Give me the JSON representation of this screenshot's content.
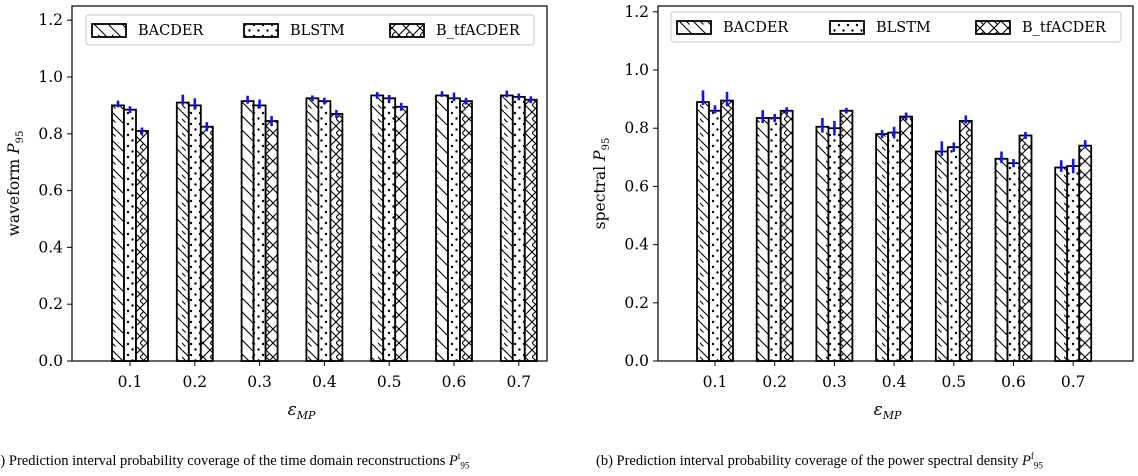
{
  "figure": {
    "captions": [
      {
        "prefix": "a) Prediction interval probability coverage of the time domain reconstructions ",
        "sym": "P",
        "sup": "t",
        "sub": "95"
      },
      {
        "prefix": "(b) Prediction interval probability coverage of the power spectral density ",
        "sym": "P",
        "sup": "f",
        "sub": "95"
      }
    ]
  },
  "chart_data": [
    {
      "type": "bar",
      "panel": "a",
      "categories": [
        "0.1",
        "0.2",
        "0.3",
        "0.4",
        "0.5",
        "0.6",
        "0.7"
      ],
      "xlabel_sym": "ε",
      "xlabel_sub": "MP",
      "ylabel_text": "waveform",
      "ylabel_sym": "P",
      "ylabel_sub": "95",
      "ylim": [
        0,
        1.25
      ],
      "yticks": [
        "0.0",
        "0.2",
        "0.4",
        "0.6",
        "0.8",
        "1.0",
        "1.2"
      ],
      "legend_position": "top",
      "series": [
        {
          "name": "BACDER",
          "pattern": "backslash",
          "values": [
            0.9,
            0.91,
            0.915,
            0.925,
            0.935,
            0.935,
            0.935
          ],
          "err_values": [
            0.905,
            0.92,
            0.92,
            0.925,
            0.935,
            0.94,
            0.94
          ],
          "err": [
            0.012,
            0.018,
            0.014,
            0.01,
            0.012,
            0.01,
            0.012
          ]
        },
        {
          "name": "BLSTM",
          "pattern": "dots",
          "values": [
            0.885,
            0.9,
            0.9,
            0.915,
            0.925,
            0.925,
            0.93
          ],
          "err_values": [
            0.885,
            0.905,
            0.905,
            0.915,
            0.925,
            0.93,
            0.93
          ],
          "err": [
            0.012,
            0.02,
            0.016,
            0.012,
            0.012,
            0.015,
            0.012
          ]
        },
        {
          "name": "B_tfACDER",
          "pattern": "cross",
          "values": [
            0.81,
            0.825,
            0.845,
            0.87,
            0.895,
            0.915,
            0.92
          ],
          "err_values": [
            0.81,
            0.825,
            0.845,
            0.87,
            0.895,
            0.915,
            0.92
          ],
          "err": [
            0.012,
            0.016,
            0.018,
            0.014,
            0.014,
            0.012,
            0.012
          ]
        }
      ]
    },
    {
      "type": "bar",
      "panel": "b",
      "categories": [
        "0.1",
        "0.2",
        "0.3",
        "0.4",
        "0.5",
        "0.6",
        "0.7"
      ],
      "xlabel_sym": "ε",
      "xlabel_sub": "MP",
      "ylabel_text": "spectral",
      "ylabel_sym": "P",
      "ylabel_sub": "95",
      "ylim": [
        0,
        1.22
      ],
      "yticks": [
        "0.0",
        "0.2",
        "0.4",
        "0.6",
        "0.8",
        "1.0",
        "1.2"
      ],
      "legend_position": "top",
      "series": [
        {
          "name": "BACDER",
          "pattern": "backslash",
          "values": [
            0.89,
            0.835,
            0.805,
            0.78,
            0.72,
            0.695,
            0.665
          ],
          "err_values": [
            0.905,
            0.84,
            0.81,
            0.78,
            0.73,
            0.7,
            0.67
          ],
          "err": [
            0.025,
            0.022,
            0.025,
            0.014,
            0.025,
            0.02,
            0.02
          ]
        },
        {
          "name": "BLSTM",
          "pattern": "dots",
          "values": [
            0.86,
            0.835,
            0.8,
            0.785,
            0.735,
            0.68,
            0.67
          ],
          "err_values": [
            0.865,
            0.835,
            0.8,
            0.785,
            0.735,
            0.68,
            0.67
          ],
          "err": [
            0.014,
            0.014,
            0.025,
            0.02,
            0.016,
            0.014,
            0.025
          ]
        },
        {
          "name": "B_tfACDER",
          "pattern": "cross",
          "values": [
            0.895,
            0.86,
            0.86,
            0.84,
            0.825,
            0.775,
            0.74
          ],
          "err_values": [
            0.9,
            0.86,
            0.86,
            0.84,
            0.83,
            0.775,
            0.745
          ],
          "err": [
            0.025,
            0.012,
            0.01,
            0.014,
            0.014,
            0.012,
            0.014
          ]
        }
      ]
    }
  ]
}
